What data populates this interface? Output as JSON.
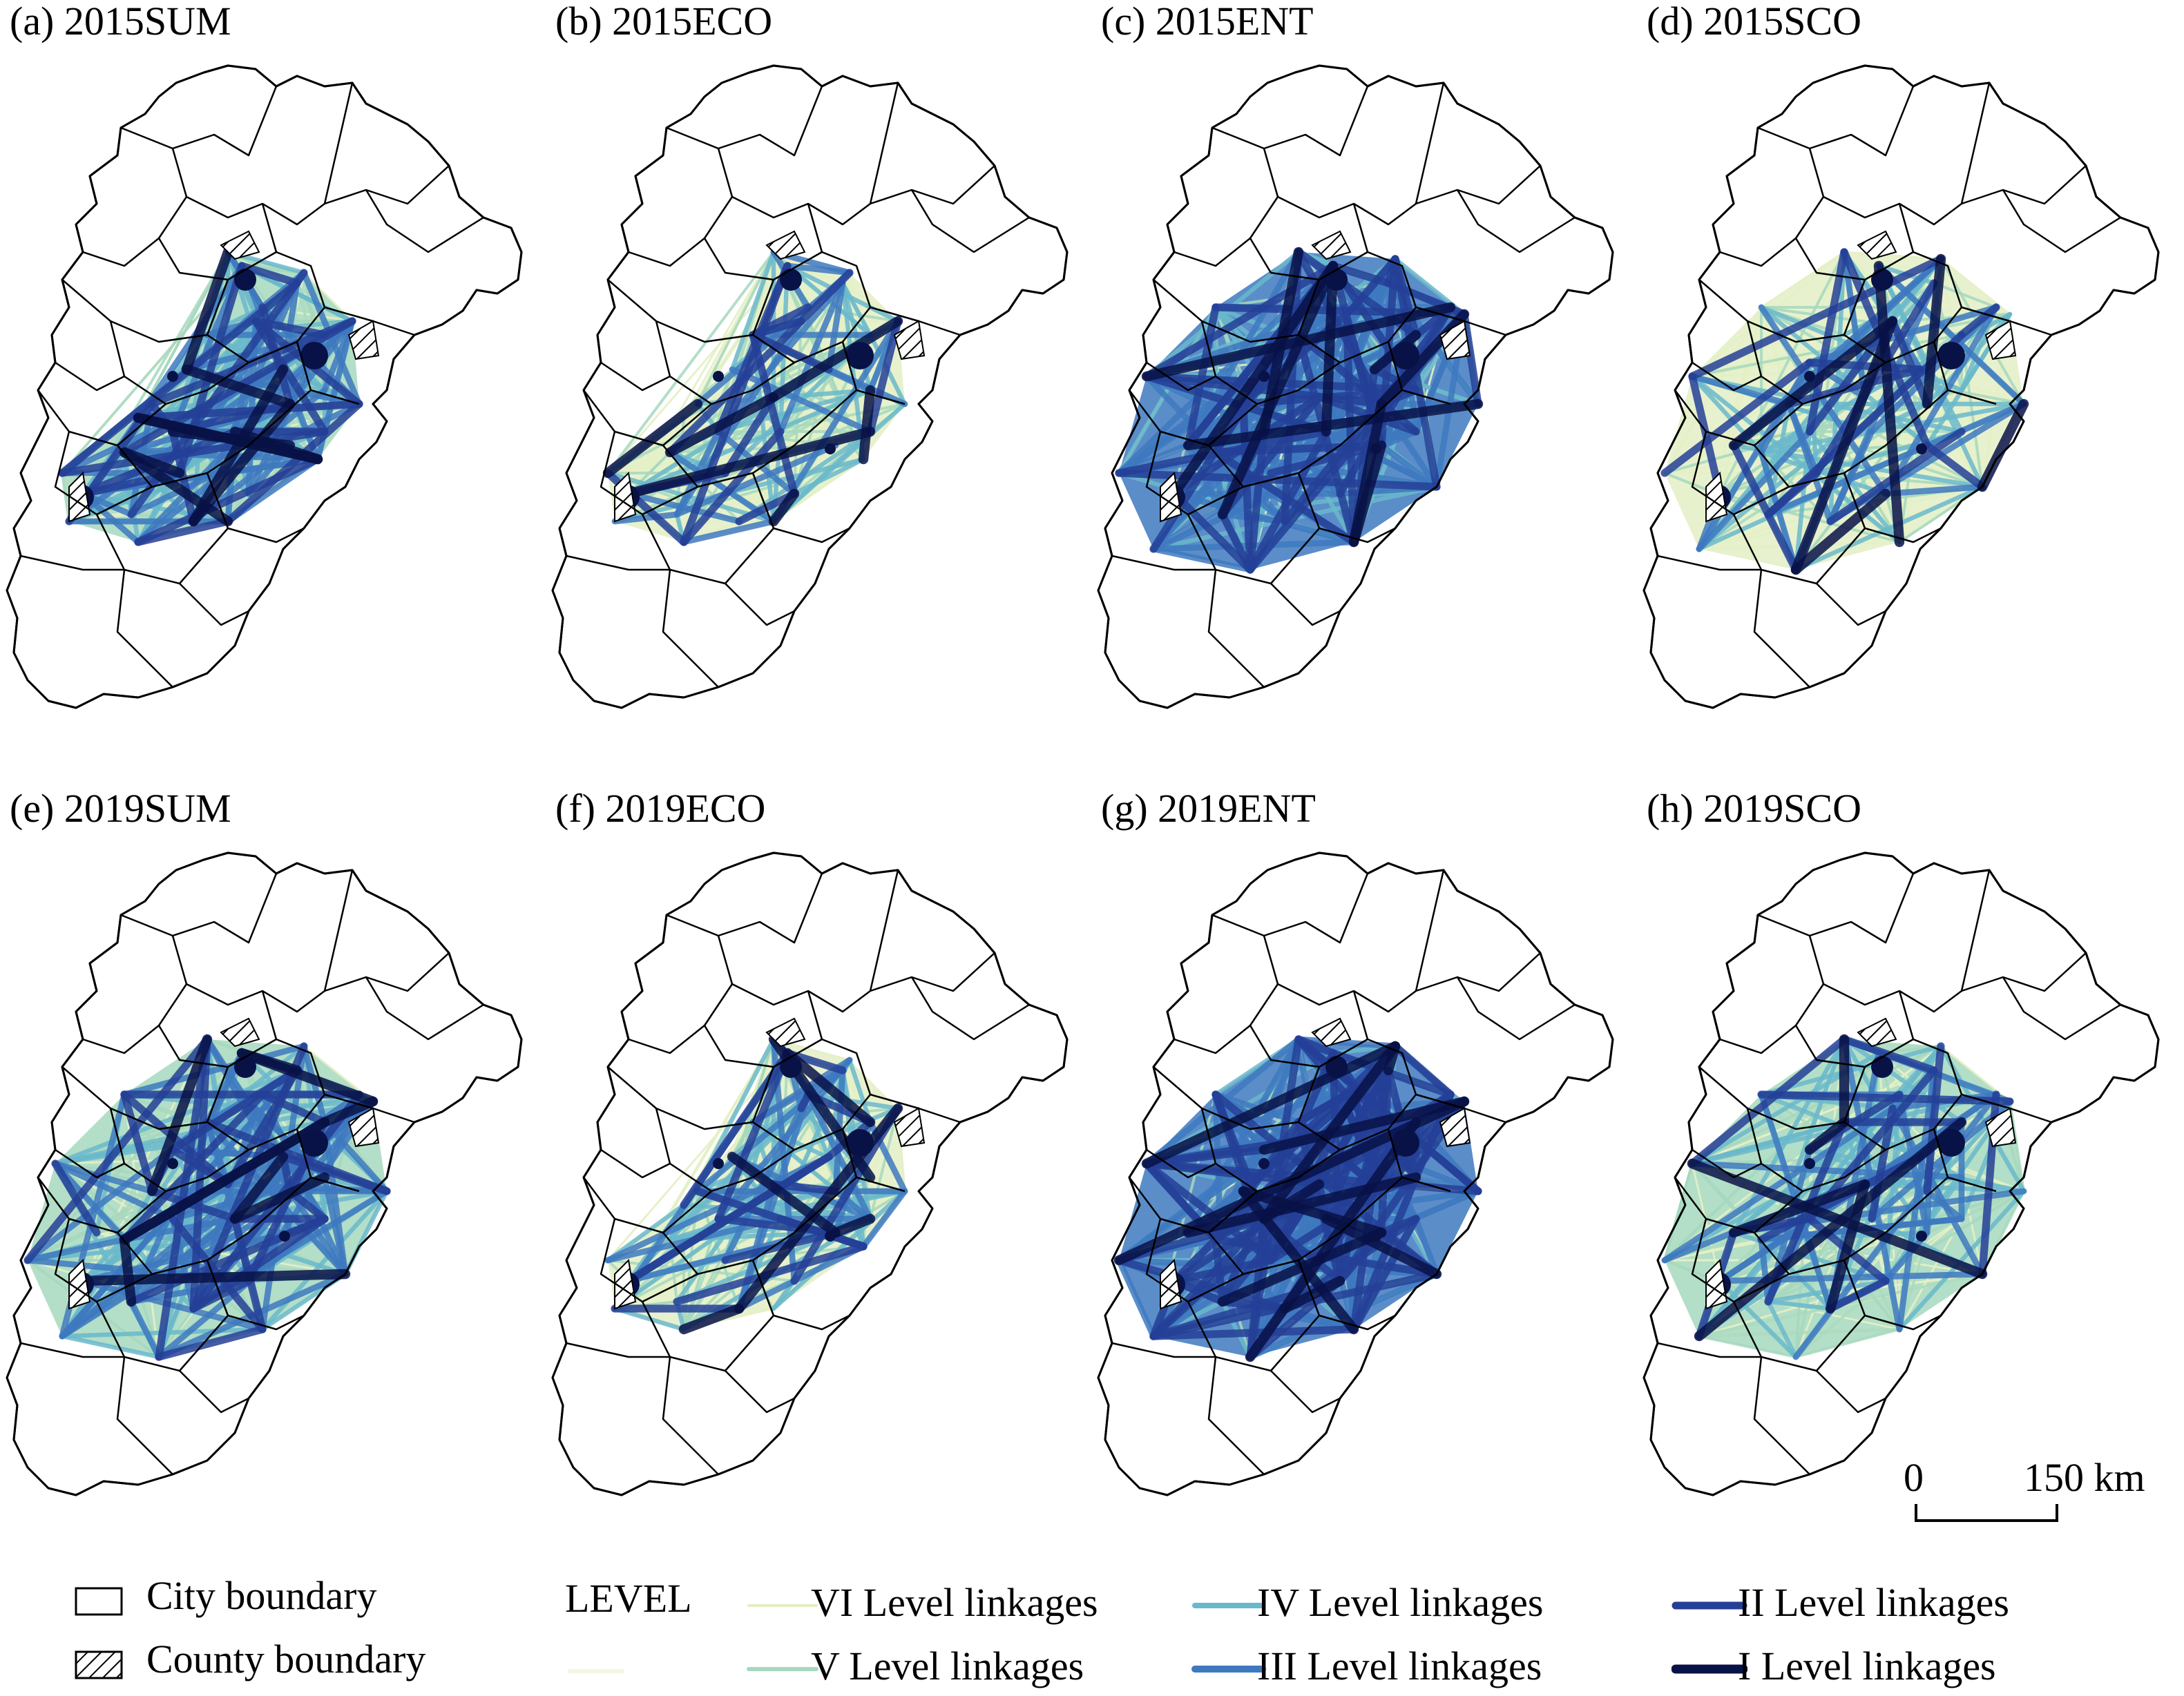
{
  "panels": [
    {
      "id": "a",
      "title": "(a) 2015SUM",
      "level_mix": {
        "VI": 0.2,
        "V": 0.3,
        "IV": 0.25,
        "III": 0.15,
        "II": 0.07,
        "I": 0.03
      },
      "coverage": "central"
    },
    {
      "id": "b",
      "title": "(b) 2015ECO",
      "level_mix": {
        "VI": 0.55,
        "V": 0.2,
        "IV": 0.12,
        "III": 0.07,
        "II": 0.04,
        "I": 0.02
      },
      "coverage": "central"
    },
    {
      "id": "c",
      "title": "(c) 2015ENT",
      "level_mix": {
        "VI": 0.05,
        "V": 0.1,
        "IV": 0.3,
        "III": 0.35,
        "II": 0.17,
        "I": 0.03
      },
      "coverage": "wide"
    },
    {
      "id": "d",
      "title": "(d) 2015SCO",
      "level_mix": {
        "VI": 0.5,
        "V": 0.2,
        "IV": 0.15,
        "III": 0.08,
        "II": 0.05,
        "I": 0.02
      },
      "coverage": "wide"
    },
    {
      "id": "e",
      "title": "(e) 2019SUM",
      "level_mix": {
        "VI": 0.15,
        "V": 0.25,
        "IV": 0.28,
        "III": 0.2,
        "II": 0.09,
        "I": 0.03
      },
      "coverage": "wide"
    },
    {
      "id": "f",
      "title": "(f) 2019ECO",
      "level_mix": {
        "VI": 0.45,
        "V": 0.25,
        "IV": 0.15,
        "III": 0.08,
        "II": 0.05,
        "I": 0.02
      },
      "coverage": "central"
    },
    {
      "id": "g",
      "title": "(g) 2019ENT",
      "level_mix": {
        "VI": 0.03,
        "V": 0.07,
        "IV": 0.2,
        "III": 0.38,
        "II": 0.28,
        "I": 0.04
      },
      "coverage": "wide"
    },
    {
      "id": "h",
      "title": "(h) 2019SCO",
      "level_mix": {
        "VI": 0.35,
        "V": 0.28,
        "IV": 0.2,
        "III": 0.1,
        "II": 0.05,
        "I": 0.02
      },
      "coverage": "wide"
    }
  ],
  "scale_bar": {
    "start": "0",
    "end": "150 km"
  },
  "legend": {
    "boundaries": [
      {
        "label": "City boundary",
        "type": "city"
      },
      {
        "label": "County boundary",
        "type": "county"
      }
    ],
    "level_heading": "LEVEL",
    "levels": [
      {
        "key": "VI",
        "label": "VI Level linkages",
        "color": "#e3efc4"
      },
      {
        "key": "V",
        "label": "V Level linkages",
        "color": "#a6d8bd"
      },
      {
        "key": "IV",
        "label": "IV Level linkages",
        "color": "#6ab9cb"
      },
      {
        "key": "III",
        "label": "III Level linkages",
        "color": "#3e79c0"
      },
      {
        "key": "II",
        "label": "II Level linkages",
        "color": "#253f96"
      },
      {
        "key": "I",
        "label": "I Level linkages",
        "color": "#081247"
      }
    ]
  }
}
